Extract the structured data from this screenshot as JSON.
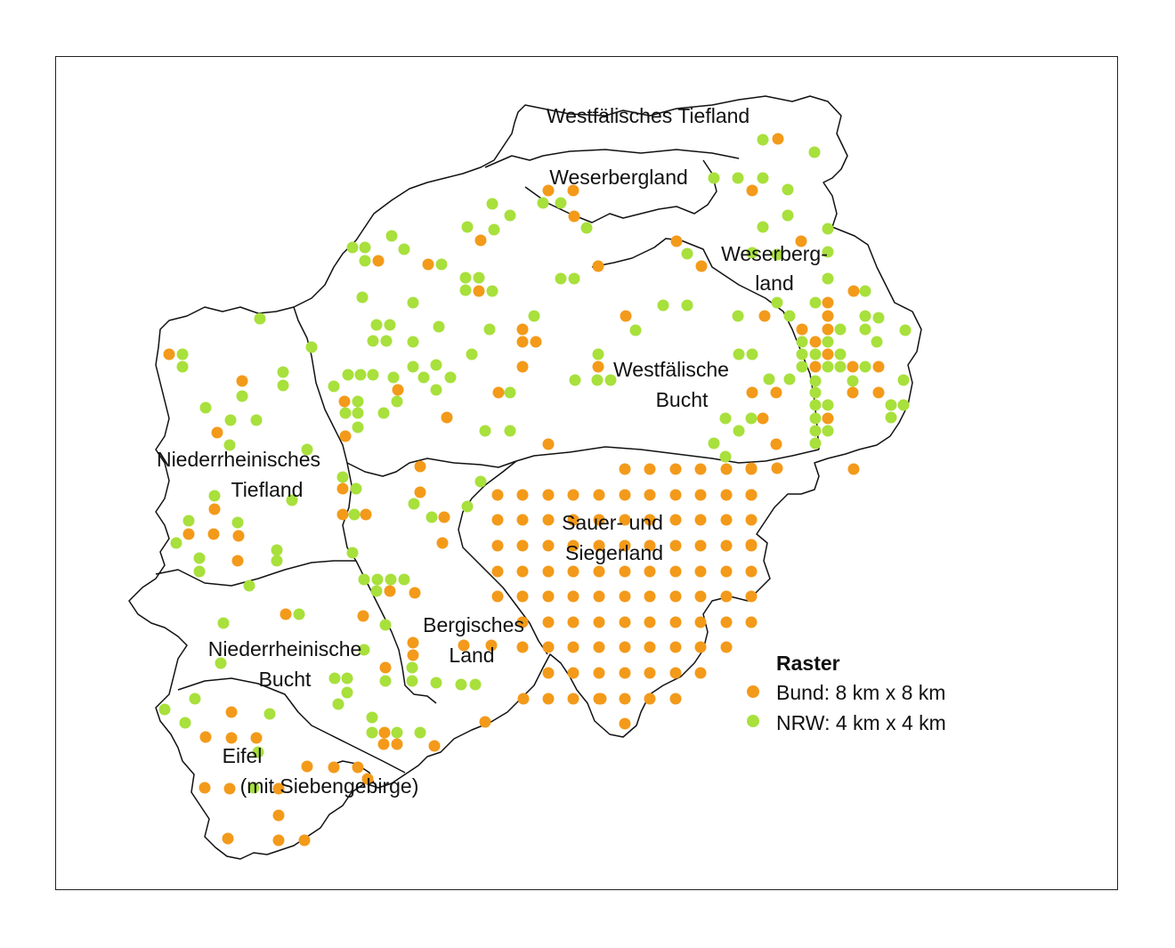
{
  "colors": {
    "bund": "#f39a1a",
    "nrw": "#a8e03c",
    "border": "#111111",
    "background": "#ffffff"
  },
  "regions": [
    {
      "id": "westfaelisches-tiefland",
      "lines": [
        "Westfälisches Tiefland"
      ]
    },
    {
      "id": "weserbergland-west",
      "lines": [
        "Weserbergland"
      ]
    },
    {
      "id": "weserbergland-east",
      "lines": [
        "Weserberg-",
        "land"
      ]
    },
    {
      "id": "westfaelische-bucht",
      "lines": [
        "Westfälische",
        "Bucht"
      ]
    },
    {
      "id": "niederrheinisches-tiefland",
      "lines": [
        "Niederrheinisches",
        "Tiefland"
      ]
    },
    {
      "id": "sauer-siegerland",
      "lines": [
        "Sauer- und",
        "Siegerland"
      ]
    },
    {
      "id": "bergisches-land",
      "lines": [
        "Bergisches",
        "Land"
      ]
    },
    {
      "id": "niederrheinische-bucht",
      "lines": [
        "Niederrheinische",
        "Bucht"
      ]
    },
    {
      "id": "eifel",
      "lines": [
        "Eifel",
        "(mit Siebengebirge)"
      ]
    }
  ],
  "legend": {
    "title": "Raster",
    "items": [
      {
        "key": "bund",
        "label": "Bund: 8 km x 8 km"
      },
      {
        "key": "nrw",
        "label": "NRW: 4 km x 4 km"
      }
    ]
  }
}
